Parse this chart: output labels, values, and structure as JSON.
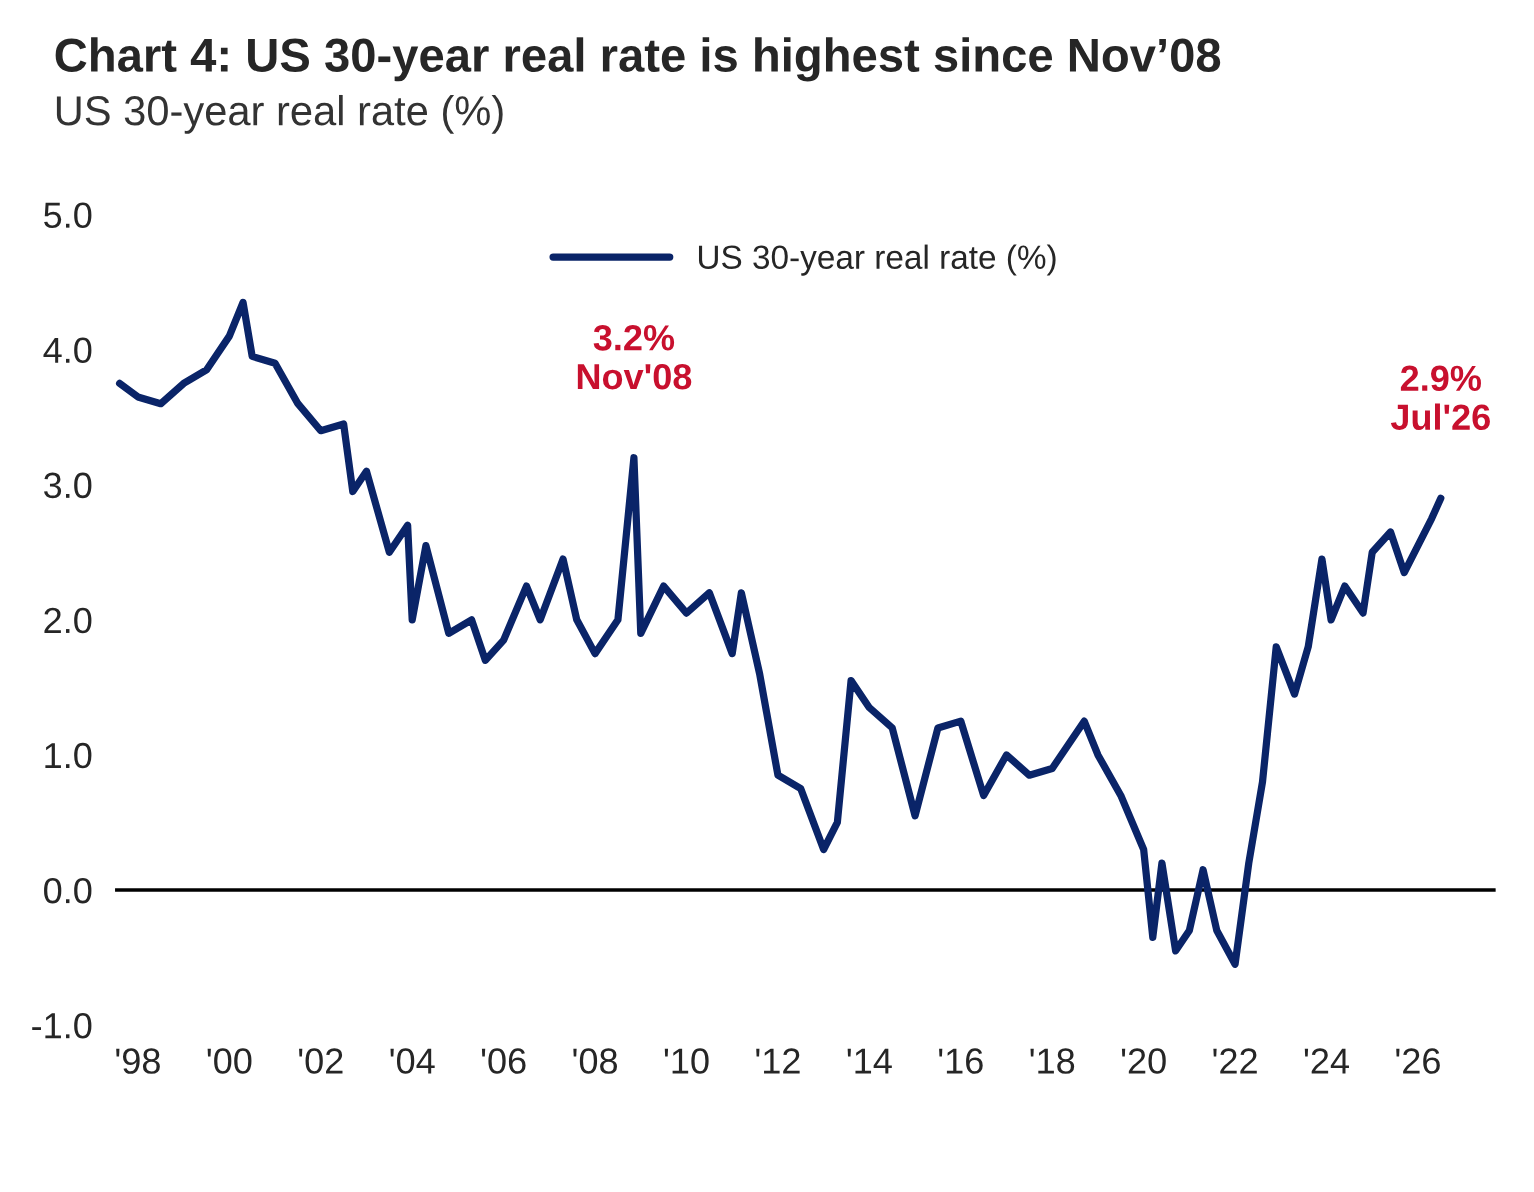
{
  "chart_data": {
    "type": "line",
    "title": "Chart 4: US 30-year real rate is highest since Nov’08",
    "subtitle": "US 30-year real rate (%)",
    "xlim": [
      1997.5,
      2027.7
    ],
    "ylim": [
      -1,
      5
    ],
    "xticks": [
      {
        "value": 1998,
        "label": "'98"
      },
      {
        "value": 2000,
        "label": "'00"
      },
      {
        "value": 2002,
        "label": "'02"
      },
      {
        "value": 2004,
        "label": "'04"
      },
      {
        "value": 2006,
        "label": "'06"
      },
      {
        "value": 2008,
        "label": "'08"
      },
      {
        "value": 2010,
        "label": "'10"
      },
      {
        "value": 2012,
        "label": "'12"
      },
      {
        "value": 2014,
        "label": "'14"
      },
      {
        "value": 2016,
        "label": "'16"
      },
      {
        "value": 2018,
        "label": "'18"
      },
      {
        "value": 2020,
        "label": "'20"
      },
      {
        "value": 2022,
        "label": "'22"
      },
      {
        "value": 2024,
        "label": "'24"
      },
      {
        "value": 2026,
        "label": "'26"
      }
    ],
    "yticks": [
      {
        "value": -1,
        "label": "-1.0"
      },
      {
        "value": 0,
        "label": "0.0"
      },
      {
        "value": 1,
        "label": "1.0"
      },
      {
        "value": 2,
        "label": "2.0"
      },
      {
        "value": 3,
        "label": "3.0"
      },
      {
        "value": 4,
        "label": "4.0"
      },
      {
        "value": 5,
        "label": "5.0"
      }
    ],
    "grid": false,
    "legend": "top",
    "marker": "none",
    "line_style": "solid",
    "ref_lines": [
      {
        "axis": "y",
        "value": 0,
        "color": "#000000"
      }
    ],
    "annotations": [
      {
        "text": "3.2%\nNov'08",
        "x": 2008.85,
        "y": 3.2
      },
      {
        "text": "2.9%\nJul'26",
        "x": 2026.5,
        "y": 2.9
      }
    ],
    "series": [
      {
        "name": "US 30-year real rate (%)",
        "color": "#0a2468",
        "x": [
          1997.6,
          1998.0,
          1998.5,
          1999.0,
          1999.5,
          2000.0,
          2000.3,
          2000.5,
          2001.0,
          2001.5,
          2002.0,
          2002.5,
          2002.7,
          2003.0,
          2003.5,
          2003.9,
          2004.0,
          2004.3,
          2004.8,
          2005.3,
          2005.6,
          2006.0,
          2006.5,
          2006.8,
          2007.3,
          2007.6,
          2008.0,
          2008.5,
          2008.85,
          2009.0,
          2009.5,
          2010.0,
          2010.5,
          2011.0,
          2011.2,
          2011.6,
          2012.0,
          2012.5,
          2013.0,
          2013.3,
          2013.6,
          2014.0,
          2014.5,
          2015.0,
          2015.5,
          2016.0,
          2016.5,
          2017.0,
          2017.5,
          2018.0,
          2018.7,
          2019.0,
          2019.5,
          2020.0,
          2020.2,
          2020.4,
          2020.7,
          2021.0,
          2021.3,
          2021.6,
          2022.0,
          2022.3,
          2022.6,
          2022.9,
          2023.3,
          2023.6,
          2023.9,
          2024.1,
          2024.4,
          2024.8,
          2025.0,
          2025.4,
          2025.7,
          2026.0,
          2026.3,
          2026.5
        ],
        "values": [
          3.75,
          3.65,
          3.6,
          3.75,
          3.85,
          4.1,
          4.35,
          3.95,
          3.9,
          3.6,
          3.4,
          3.45,
          2.95,
          3.1,
          2.5,
          2.7,
          2.0,
          2.55,
          1.9,
          2.0,
          1.7,
          1.85,
          2.25,
          2.0,
          2.45,
          2.0,
          1.75,
          2.0,
          3.2,
          1.9,
          2.25,
          2.05,
          2.2,
          1.75,
          2.2,
          1.6,
          0.85,
          0.75,
          0.3,
          0.5,
          1.55,
          1.35,
          1.2,
          0.55,
          1.2,
          1.25,
          0.7,
          1.0,
          0.85,
          0.9,
          1.25,
          1.0,
          0.7,
          0.3,
          -0.35,
          0.2,
          -0.45,
          -0.3,
          0.15,
          -0.3,
          -0.55,
          0.2,
          0.8,
          1.8,
          1.45,
          1.8,
          2.45,
          2.0,
          2.25,
          2.05,
          2.5,
          2.65,
          2.35,
          2.55,
          2.75,
          2.9
        ]
      }
    ]
  }
}
